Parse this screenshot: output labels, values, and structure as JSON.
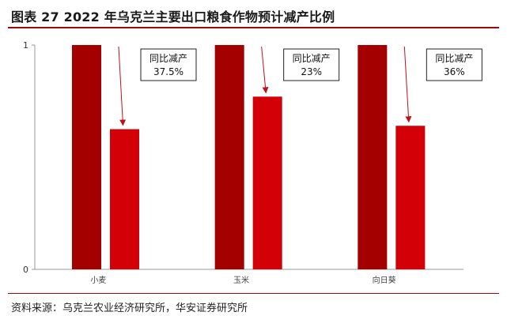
{
  "title": "图表 27 2022 年乌克兰主要出口粮食作物预计减产比例",
  "source": "资料来源：乌克兰农业经济研究所，华安证券研究所",
  "colors": {
    "bar_dark": "#a50000",
    "bar_light": "#d40008",
    "arrow": "#c0101a",
    "rule": "#9d0a0a"
  },
  "chart_data": {
    "type": "bar",
    "categories": [
      "小麦",
      "玉米",
      "向日葵"
    ],
    "series": [
      {
        "values": [
          1,
          1,
          1
        ]
      },
      {
        "values": [
          0.625,
          0.77,
          0.64
        ]
      }
    ],
    "ylim": [
      0,
      1
    ],
    "yticks": [
      0,
      1
    ],
    "annotations": [
      {
        "category": "小麦",
        "label": "同比减产",
        "value": "37.5%"
      },
      {
        "category": "玉米",
        "label": "同比减产",
        "value": "23%"
      },
      {
        "category": "向日葵",
        "label": "同比减产",
        "value": "36%"
      }
    ],
    "grid": false,
    "legend": "none"
  }
}
